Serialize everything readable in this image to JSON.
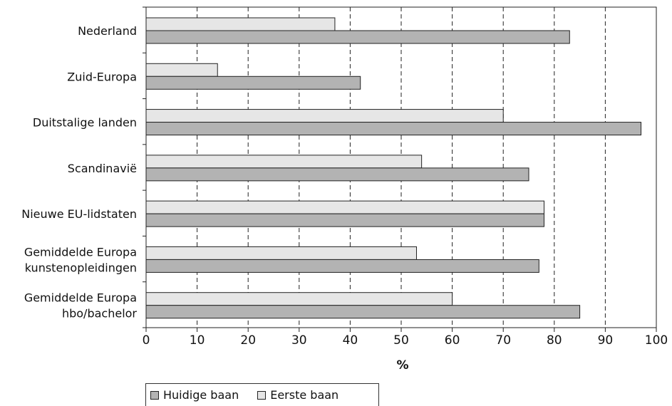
{
  "chart_data": {
    "type": "bar",
    "orientation": "horizontal",
    "categories": [
      "Nederland",
      "Zuid-Europa",
      "Duitstalige landen",
      "Scandinavië",
      "Nieuwe EU-lidstaten",
      "Gemiddelde Europa\nkunstenopleidingen",
      "Gemiddelde Europa\nhbo/bachelor"
    ],
    "series": [
      {
        "name": "Eerste baan",
        "color": "#e6e6e6",
        "values": [
          37,
          14,
          70,
          54,
          78,
          53,
          60
        ]
      },
      {
        "name": "Huidige baan",
        "color": "#b3b3b3",
        "values": [
          83,
          42,
          97,
          75,
          78,
          77,
          85
        ]
      }
    ],
    "xlim": [
      0,
      100
    ],
    "xticks": [
      "0",
      "10",
      "20",
      "30",
      "40",
      "50",
      "60",
      "70",
      "80",
      "90",
      "100"
    ],
    "xlabel": "%",
    "grid": "vertical dashed",
    "legend": {
      "position": "bottom-left",
      "order": [
        "Huidige baan",
        "Eerste baan"
      ]
    }
  }
}
